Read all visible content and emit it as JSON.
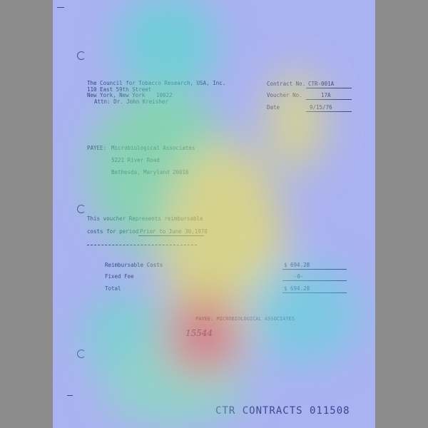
{
  "header": {
    "org_line1": "The Council for Tobacco Research, USA, Inc.",
    "org_line2": "110 East 59th Street",
    "org_line3": "New York, New York",
    "org_zip": "10022",
    "org_attn": "Attn:  Dr. John Kreisher"
  },
  "fields": {
    "contract_label": "Contract No.",
    "contract_value": "CTR-001A",
    "voucher_label": "Voucher No.",
    "voucher_value": "17A",
    "date_label": "Date",
    "date_value": "9/15/76"
  },
  "payee": {
    "label": "PAYEE:",
    "name": "Microbiological Associates",
    "street": "5221 River Road",
    "city": "Bethesda, Maryland",
    "zip": "20016"
  },
  "voucher_text": {
    "line1": "This voucher Represents reimbursable",
    "line2_prefix": "costs for period",
    "period": "Prior to   June 30,1976"
  },
  "amounts": {
    "reimbursable_label": "Reimbursable Costs",
    "reimbursable_value": "$ 694.28",
    "fixed_fee_label": "Fixed Fee",
    "fixed_fee_value": "-0-",
    "total_label": "Total",
    "total_value": "$ 694.28"
  },
  "payee_stamp": "PAYEE:  MICROBIOLOGICAL ASSOCIATES",
  "handwritten_number": "15544",
  "footer": "CTR CONTRACTS 011508"
}
